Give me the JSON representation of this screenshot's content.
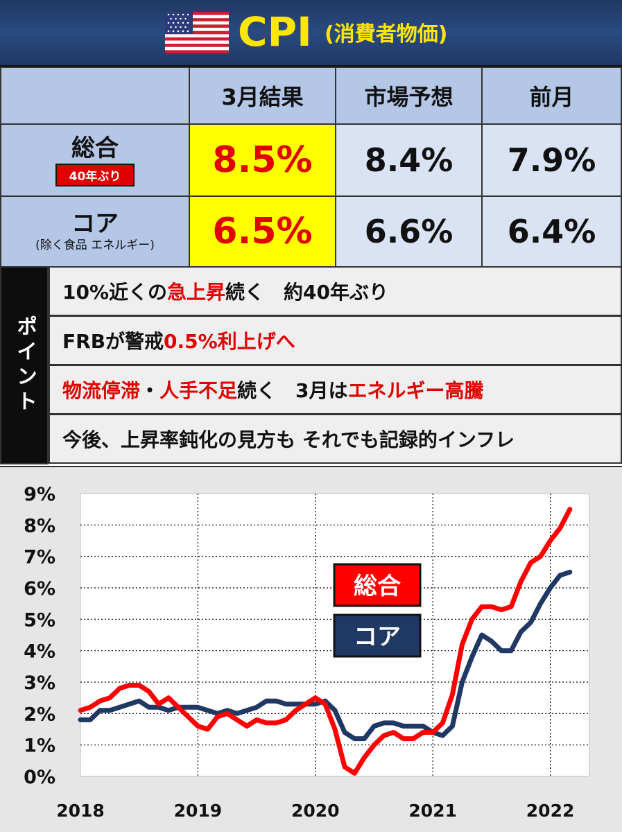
{
  "header": {
    "title": "CPI",
    "subtitle": "(消費者物価)",
    "flag": "us-flag-icon"
  },
  "table": {
    "columns": [
      "3月結果",
      "市場予想",
      "前月"
    ],
    "rows": [
      {
        "label": "総合",
        "badge": "40年ぶり",
        "result": "8.5%",
        "forecast": "8.4%",
        "previous": "7.9%"
      },
      {
        "label": "コア",
        "sublabel": "(除く食品 エネルギー)",
        "result": "6.5%",
        "forecast": "6.6%",
        "previous": "6.4%"
      }
    ]
  },
  "points": {
    "label": "ポイント",
    "items": [
      [
        {
          "t": "10%近くの"
        },
        {
          "t": "急上昇",
          "red": true
        },
        {
          "t": "続く　約40年ぶり"
        }
      ],
      [
        {
          "t": "FRBが警戒 "
        },
        {
          "t": "0.5%利上げへ",
          "red": true
        }
      ],
      [
        {
          "t": "物流停滞",
          "red": true
        },
        {
          "t": "・"
        },
        {
          "t": "人手不足",
          "red": true
        },
        {
          "t": "続く　3月は"
        },
        {
          "t": "エネルギー高騰",
          "red": true
        }
      ],
      [
        {
          "t": "今後、上昇率鈍化の見方も それでも記録的インフレ"
        }
      ]
    ]
  },
  "chart_data": {
    "type": "line",
    "ylim": [
      0,
      9
    ],
    "yticks": [
      "0%",
      "1%",
      "2%",
      "3%",
      "4%",
      "5%",
      "6%",
      "7%",
      "8%",
      "9%"
    ],
    "xticks": [
      "2018",
      "2019",
      "2020",
      "2021",
      "2022"
    ],
    "xlim": [
      2018.0,
      2022.333
    ],
    "colors": {
      "総合": "#ff0000",
      "コア": "#1f3864"
    },
    "series": [
      {
        "name": "総合",
        "start": "2018-01",
        "values": [
          2.1,
          2.2,
          2.4,
          2.5,
          2.8,
          2.9,
          2.9,
          2.7,
          2.3,
          2.5,
          2.2,
          1.9,
          1.6,
          1.5,
          1.9,
          2.0,
          1.8,
          1.6,
          1.8,
          1.7,
          1.7,
          1.8,
          2.1,
          2.3,
          2.5,
          2.3,
          1.5,
          0.3,
          0.1,
          0.6,
          1.0,
          1.3,
          1.4,
          1.2,
          1.2,
          1.4,
          1.4,
          1.7,
          2.6,
          4.2,
          5.0,
          5.4,
          5.4,
          5.3,
          5.4,
          6.2,
          6.8,
          7.0,
          7.5,
          7.9,
          8.5
        ]
      },
      {
        "name": "コア",
        "start": "2018-01",
        "values": [
          1.8,
          1.8,
          2.1,
          2.1,
          2.2,
          2.3,
          2.4,
          2.2,
          2.2,
          2.1,
          2.2,
          2.2,
          2.2,
          2.1,
          2.0,
          2.1,
          2.0,
          2.1,
          2.2,
          2.4,
          2.4,
          2.3,
          2.3,
          2.3,
          2.3,
          2.4,
          2.1,
          1.4,
          1.2,
          1.2,
          1.6,
          1.7,
          1.7,
          1.6,
          1.6,
          1.6,
          1.4,
          1.3,
          1.6,
          3.0,
          3.8,
          4.5,
          4.3,
          4.0,
          4.0,
          4.6,
          4.9,
          5.5,
          6.0,
          6.4,
          6.5
        ]
      }
    ]
  }
}
